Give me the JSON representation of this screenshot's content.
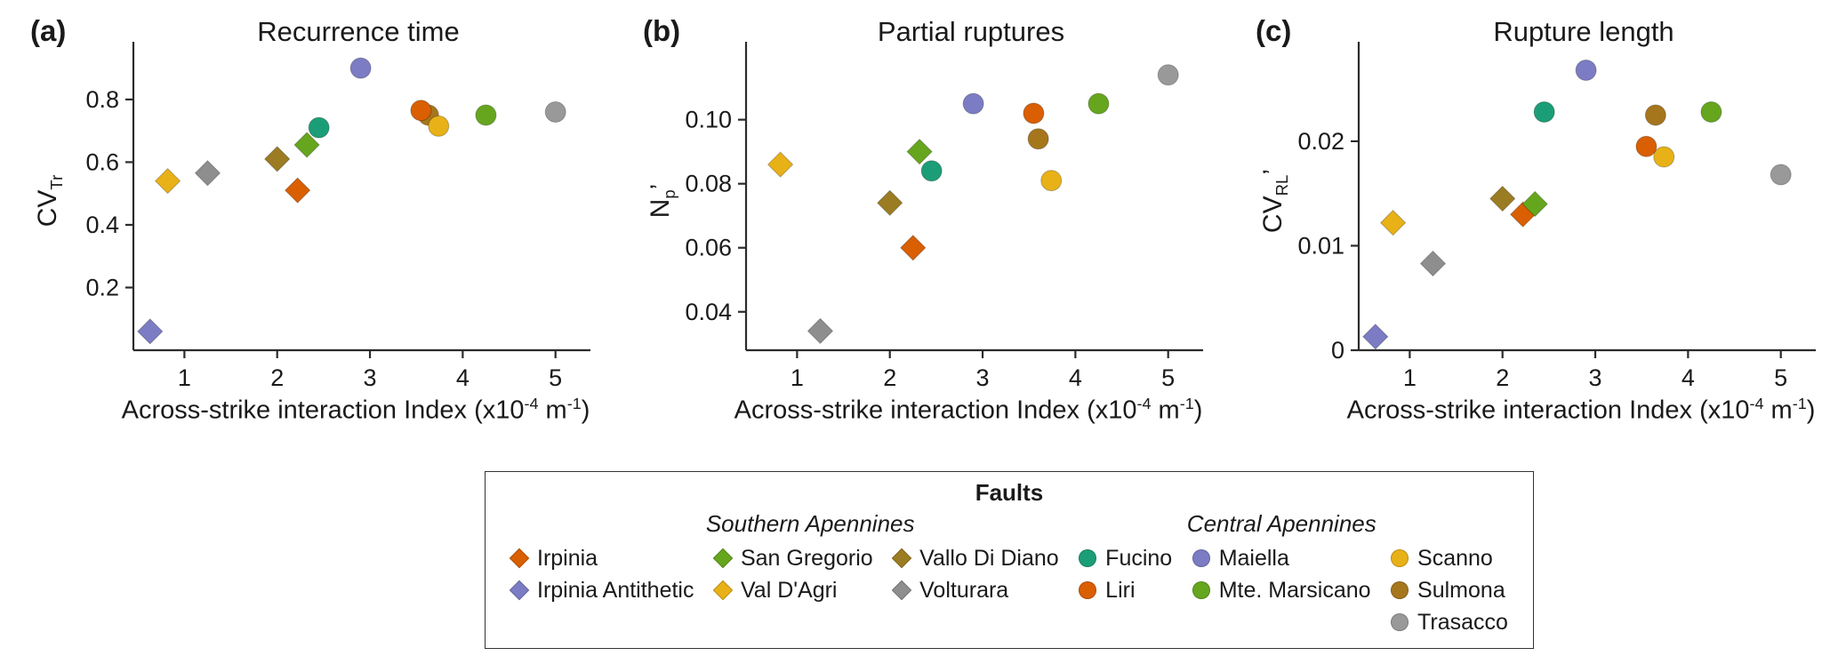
{
  "xlabel_segments": [
    {
      "t": "Across-strike interaction Index (x10"
    },
    {
      "t": "-4",
      "sup": true
    },
    {
      "t": " m"
    },
    {
      "t": "-1",
      "sup": true
    },
    {
      "t": ")"
    }
  ],
  "legend": {
    "title": "Faults",
    "groups": [
      {
        "label": "Southern Apennines"
      },
      {
        "label": "Central Apennines"
      }
    ],
    "columns": [
      [
        "Irpinia",
        "Irpinia Antithetic"
      ],
      [
        "San Gregorio",
        "Val D'Agri"
      ],
      [
        "Vallo Di Diano",
        "Volturara"
      ],
      [
        "Fucino",
        "Liri"
      ],
      [
        "Maiella",
        "Mte. Marsicano"
      ],
      [
        "Scanno",
        "Sulmona",
        "Trasacco"
      ]
    ]
  },
  "faults": {
    "Irpinia": {
      "color": "#d95f02",
      "marker": "diamond",
      "region": "Southern Apennines"
    },
    "Irpinia Antithetic": {
      "color": "#7b7cc4",
      "marker": "diamond",
      "region": "Southern Apennines"
    },
    "San Gregorio": {
      "color": "#66a61e",
      "marker": "diamond",
      "region": "Southern Apennines"
    },
    "Val D'Agri": {
      "color": "#e8b117",
      "marker": "diamond",
      "region": "Southern Apennines"
    },
    "Vallo Di Diano": {
      "color": "#9c7c22",
      "marker": "diamond",
      "region": "Southern Apennines"
    },
    "Volturara": {
      "color": "#8e8e8e",
      "marker": "diamond",
      "region": "Southern Apennines"
    },
    "Fucino": {
      "color": "#1b9e77",
      "marker": "circle",
      "region": "Central Apennines"
    },
    "Liri": {
      "color": "#d95f02",
      "marker": "circle",
      "region": "Central Apennines"
    },
    "Maiella": {
      "color": "#7b7cc4",
      "marker": "circle",
      "region": "Central Apennines"
    },
    "Mte. Marsicano": {
      "color": "#66a61e",
      "marker": "circle",
      "region": "Central Apennines"
    },
    "Scanno": {
      "color": "#e8b117",
      "marker": "circle",
      "region": "Central Apennines"
    },
    "Sulmona": {
      "color": "#a6761d",
      "marker": "circle",
      "region": "Central Apennines"
    },
    "Trasacco": {
      "color": "#999999",
      "marker": "circle",
      "region": "Central Apennines"
    }
  },
  "chart_data": [
    {
      "type": "scatter",
      "panel_label": "(a)",
      "title": "Recurrence time",
      "ylabel_segments": [
        {
          "t": "CV"
        },
        {
          "t": "Tr",
          "sub": true
        }
      ],
      "xlabel": "Across-strike interaction Index (x10-4 m-1)",
      "xlim": [
        0.45,
        5.3
      ],
      "ylim": [
        0,
        0.95
      ],
      "xticks": [
        1,
        2,
        3,
        4,
        5
      ],
      "xtick_labels": [
        "1",
        "2",
        "3",
        "4",
        "5"
      ],
      "yticks": [
        0.2,
        0.4,
        0.6,
        0.8
      ],
      "ytick_labels": [
        "0.2",
        "0.4",
        "0.6",
        "0.8"
      ],
      "grid": false,
      "points": [
        {
          "fault": "Irpinia Antithetic",
          "x": 0.63,
          "y": 0.06
        },
        {
          "fault": "Val D'Agri",
          "x": 0.82,
          "y": 0.54
        },
        {
          "fault": "Volturara",
          "x": 1.25,
          "y": 0.565
        },
        {
          "fault": "Vallo Di Diano",
          "x": 2.0,
          "y": 0.61
        },
        {
          "fault": "Irpinia",
          "x": 2.22,
          "y": 0.51
        },
        {
          "fault": "San Gregorio",
          "x": 2.32,
          "y": 0.655
        },
        {
          "fault": "Fucino",
          "x": 2.45,
          "y": 0.71
        },
        {
          "fault": "Maiella",
          "x": 2.9,
          "y": 0.9
        },
        {
          "fault": "Sulmona",
          "x": 3.63,
          "y": 0.75
        },
        {
          "fault": "Liri",
          "x": 3.55,
          "y": 0.765
        },
        {
          "fault": "Scanno",
          "x": 3.74,
          "y": 0.715
        },
        {
          "fault": "Mte. Marsicano",
          "x": 4.25,
          "y": 0.75
        },
        {
          "fault": "Trasacco",
          "x": 5.0,
          "y": 0.76
        }
      ]
    },
    {
      "type": "scatter",
      "panel_label": "(b)",
      "title": "Partial ruptures",
      "ylabel_segments": [
        {
          "t": "N"
        },
        {
          "t": "p",
          "sub": true
        },
        {
          "t": "’"
        }
      ],
      "xlabel": "Across-strike interaction Index (x10-4 m-1)",
      "xlim": [
        0.45,
        5.3
      ],
      "ylim": [
        0.028,
        0.121
      ],
      "xticks": [
        1,
        2,
        3,
        4,
        5
      ],
      "xtick_labels": [
        "1",
        "2",
        "3",
        "4",
        "5"
      ],
      "yticks": [
        0.04,
        0.06,
        0.08,
        0.1
      ],
      "ytick_labels": [
        "0.04",
        "0.06",
        "0.08",
        "0.10"
      ],
      "grid": false,
      "points": [
        {
          "fault": "Val D'Agri",
          "x": 0.82,
          "y": 0.086
        },
        {
          "fault": "Volturara",
          "x": 1.25,
          "y": 0.034
        },
        {
          "fault": "Vallo Di Diano",
          "x": 2.0,
          "y": 0.074
        },
        {
          "fault": "Irpinia",
          "x": 2.25,
          "y": 0.06
        },
        {
          "fault": "San Gregorio",
          "x": 2.32,
          "y": 0.09
        },
        {
          "fault": "Fucino",
          "x": 2.45,
          "y": 0.084
        },
        {
          "fault": "Maiella",
          "x": 2.9,
          "y": 0.105
        },
        {
          "fault": "Liri",
          "x": 3.55,
          "y": 0.102
        },
        {
          "fault": "Sulmona",
          "x": 3.6,
          "y": 0.094
        },
        {
          "fault": "Scanno",
          "x": 3.74,
          "y": 0.081
        },
        {
          "fault": "Mte. Marsicano",
          "x": 4.25,
          "y": 0.105
        },
        {
          "fault": "Trasacco",
          "x": 5.0,
          "y": 0.114
        }
      ]
    },
    {
      "type": "scatter",
      "panel_label": "(c)",
      "title": "Rupture length",
      "ylabel_segments": [
        {
          "t": "CV"
        },
        {
          "t": "RL",
          "sub": true
        },
        {
          "t": "’"
        }
      ],
      "xlabel": "Across-strike interaction Index (x10-4 m-1)",
      "xlim": [
        0.45,
        5.3
      ],
      "ylim": [
        0,
        0.0285
      ],
      "xticks": [
        1,
        2,
        3,
        4,
        5
      ],
      "xtick_labels": [
        "1",
        "2",
        "3",
        "4",
        "5"
      ],
      "yticks": [
        0,
        0.01,
        0.02
      ],
      "ytick_labels": [
        "0",
        "0.01",
        "0.02"
      ],
      "grid": false,
      "points": [
        {
          "fault": "Irpinia Antithetic",
          "x": 0.63,
          "y": 0.0013
        },
        {
          "fault": "Val D'Agri",
          "x": 0.82,
          "y": 0.0122
        },
        {
          "fault": "Volturara",
          "x": 1.25,
          "y": 0.0083
        },
        {
          "fault": "Vallo Di Diano",
          "x": 2.0,
          "y": 0.0145
        },
        {
          "fault": "Irpinia",
          "x": 2.22,
          "y": 0.013
        },
        {
          "fault": "San Gregorio",
          "x": 2.35,
          "y": 0.014
        },
        {
          "fault": "Fucino",
          "x": 2.45,
          "y": 0.0228
        },
        {
          "fault": "Maiella",
          "x": 2.9,
          "y": 0.0268
        },
        {
          "fault": "Liri",
          "x": 3.55,
          "y": 0.0195
        },
        {
          "fault": "Sulmona",
          "x": 3.65,
          "y": 0.0225
        },
        {
          "fault": "Scanno",
          "x": 3.74,
          "y": 0.0185
        },
        {
          "fault": "Mte. Marsicano",
          "x": 4.25,
          "y": 0.0228
        },
        {
          "fault": "Trasacco",
          "x": 5.0,
          "y": 0.0168
        }
      ]
    }
  ]
}
